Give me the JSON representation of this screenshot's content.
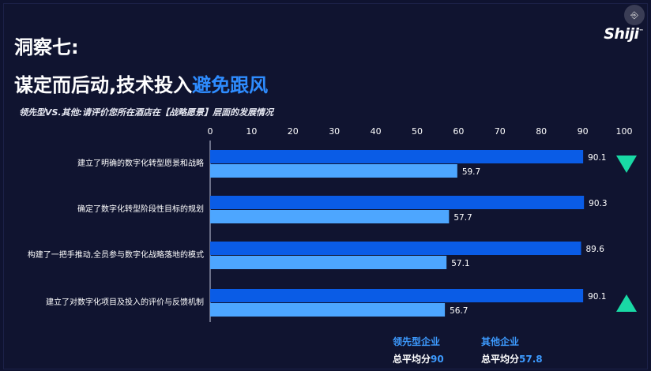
{
  "ui": {
    "exit_icon": "exit-fullscreen-icon",
    "exit_glyph": "⎆",
    "logo_text": "Shiji",
    "logo_mark": "™"
  },
  "slide": {
    "title_line1": "洞察七:",
    "title_line2_plain": "谋定而后动,技术投入",
    "title_line2_highlight": "避免跟风"
  },
  "legend": {
    "series1_name": "领先型企业",
    "series2_name": "其他企业",
    "avg_label": "总平均分",
    "series1_avg": "90",
    "series2_avg": "57.8"
  },
  "chart_data": {
    "type": "bar",
    "orientation": "horizontal",
    "title": "领先型VS.其他:请评价您所在酒店在【战略愿景】层面的发展情况",
    "categories": [
      "建立了明确的数字化转型愿景和战略",
      "确定了数字化转型阶段性目标的规划",
      "构建了一把手推动,全员参与数字化战略落地的模式",
      "建立了对数字化项目及投入的评价与反馈机制"
    ],
    "series": [
      {
        "name": "领先型企业",
        "values": [
          90.1,
          90.3,
          89.6,
          90.1
        ],
        "color": "#0a5ce6"
      },
      {
        "name": "其他企业",
        "values": [
          59.7,
          57.7,
          57.1,
          56.7
        ],
        "color": "#4da6ff"
      }
    ],
    "xlim": [
      0,
      100
    ],
    "xticks": [
      0,
      10,
      20,
      30,
      40,
      50,
      60,
      70,
      80,
      90,
      100
    ],
    "x_axis_position": "top",
    "markers": [
      {
        "category_index": 0,
        "shape": "triangle-down",
        "color": "#19d9a5"
      },
      {
        "category_index": 3,
        "shape": "triangle-up",
        "color": "#19d9a5"
      }
    ]
  }
}
